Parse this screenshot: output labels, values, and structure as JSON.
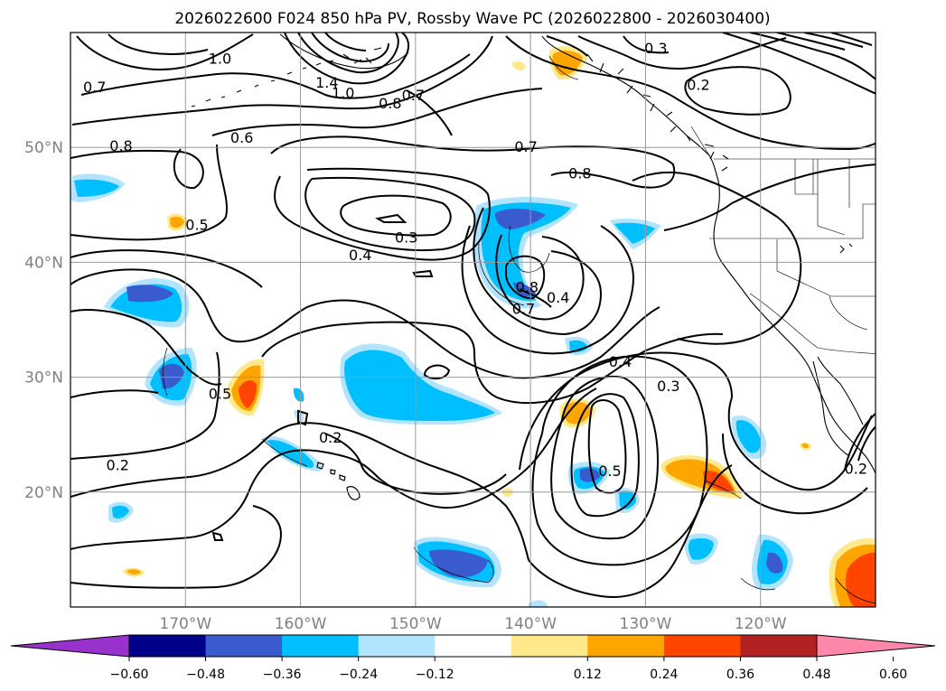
{
  "title": "2026022600 F024 850 hPa PV, Rossby Wave PC (2026022800 - 2026030400)",
  "map": {
    "projection": "PlateCarree",
    "lon_range": [
      -180,
      -110
    ],
    "lat_range": [
      10,
      60
    ],
    "grid": true,
    "lon_ticks": [
      {
        "value": -170,
        "label": "170°W"
      },
      {
        "value": -160,
        "label": "160°W"
      },
      {
        "value": -150,
        "label": "150°W"
      },
      {
        "value": -140,
        "label": "140°W"
      },
      {
        "value": -130,
        "label": "130°W"
      },
      {
        "value": -120,
        "label": "120°W"
      }
    ],
    "lat_ticks": [
      {
        "value": 50,
        "label": "50°N"
      },
      {
        "value": 40,
        "label": "40°N"
      },
      {
        "value": 30,
        "label": "30°N"
      },
      {
        "value": 20,
        "label": "20°N"
      }
    ],
    "contour_labels": [
      {
        "text": "1.0",
        "lon": -167,
        "lat": 57.7
      },
      {
        "text": "1.4",
        "lon": -157.7,
        "lat": 55.6
      },
      {
        "text": "1.0",
        "lon": -156.3,
        "lat": 54.7
      },
      {
        "text": "0.8",
        "lon": -152.2,
        "lat": 53.8
      },
      {
        "text": "0.7",
        "lon": -150.2,
        "lat": 54.5
      },
      {
        "text": "0.7",
        "lon": -177.9,
        "lat": 55.2
      },
      {
        "text": "0.8",
        "lon": -175.6,
        "lat": 50.1
      },
      {
        "text": "0.6",
        "lon": -165.1,
        "lat": 50.8
      },
      {
        "text": "0.7",
        "lon": -140.4,
        "lat": 50.0
      },
      {
        "text": "0.8",
        "lon": -135.7,
        "lat": 47.7
      },
      {
        "text": "0.3",
        "lon": -129.1,
        "lat": 58.6
      },
      {
        "text": "0.2",
        "lon": -125.4,
        "lat": 55.4
      },
      {
        "text": "0.5",
        "lon": -169.0,
        "lat": 43.2
      },
      {
        "text": "0.3",
        "lon": -150.8,
        "lat": 42.1
      },
      {
        "text": "0.4",
        "lon": -154.8,
        "lat": 40.6
      },
      {
        "text": "0.8",
        "lon": -140.3,
        "lat": 37.8
      },
      {
        "text": "0.7",
        "lon": -140.6,
        "lat": 35.9
      },
      {
        "text": "0.4",
        "lon": -137.6,
        "lat": 36.9
      },
      {
        "text": "0.5",
        "lon": -167.0,
        "lat": 28.5
      },
      {
        "text": "0.4",
        "lon": -132.2,
        "lat": 31.3
      },
      {
        "text": "0.3",
        "lon": -128.0,
        "lat": 29.2
      },
      {
        "text": "0.2",
        "lon": -157.4,
        "lat": 24.7
      },
      {
        "text": "0.2",
        "lon": -175.9,
        "lat": 22.3
      },
      {
        "text": "0.5",
        "lon": -133.1,
        "lat": 21.8
      },
      {
        "text": "0.2",
        "lon": -111.7,
        "lat": 22.0
      }
    ]
  },
  "colorbar": {
    "bounds": [
      -0.72,
      -0.6,
      -0.48,
      -0.36,
      -0.24,
      -0.12,
      0.12,
      0.24,
      0.36,
      0.48,
      0.6,
      0.72
    ],
    "colors": [
      "#9932cc",
      "#00008b",
      "#3a5bcd",
      "#00bfff",
      "#b3e4ff",
      "#ffffff",
      "#ffe98a",
      "#ffa500",
      "#ff4500",
      "#b22222",
      "#ff88aa"
    ],
    "tick_labels": [
      "−0.60",
      "−0.48",
      "−0.36",
      "−0.24",
      "−0.12",
      "0.12",
      "0.24",
      "0.36",
      "0.48",
      "0.60"
    ],
    "extend": "both"
  }
}
